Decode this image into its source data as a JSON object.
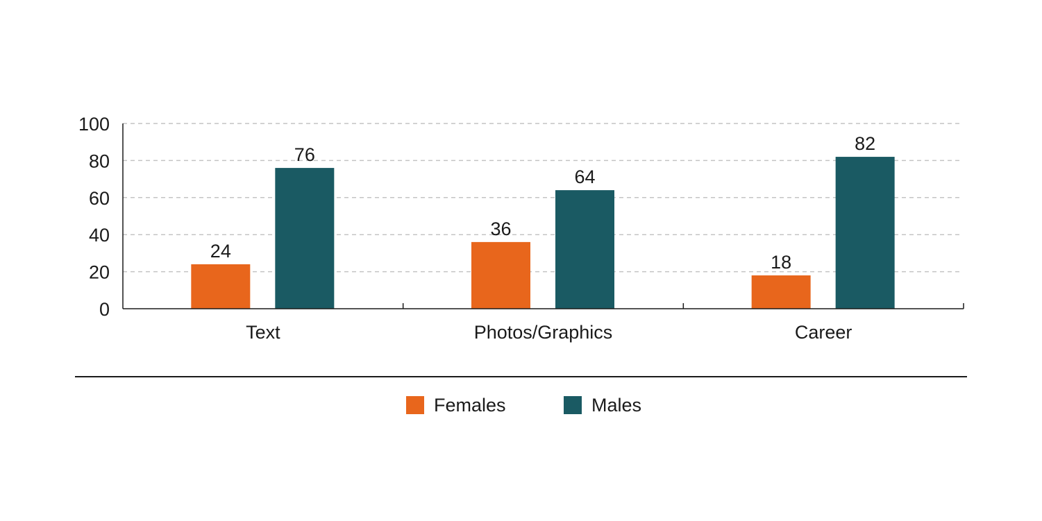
{
  "chart_data": {
    "type": "bar",
    "title": "",
    "xlabel": "",
    "ylabel": "",
    "categories": [
      "Text",
      "Photos/Graphics",
      "Career"
    ],
    "series": [
      {
        "name": "Females",
        "values": [
          24,
          36,
          18
        ],
        "color": "#E8661C"
      },
      {
        "name": "Males",
        "values": [
          76,
          64,
          82
        ],
        "color": "#1A5A63"
      }
    ],
    "ylim": [
      0,
      100
    ],
    "yticks": [
      "0",
      "20",
      "40",
      "60",
      "80",
      "100"
    ],
    "grid": true,
    "legend_position": "bottom-center"
  },
  "legend": {
    "females_label": "Females",
    "males_label": "Males"
  }
}
